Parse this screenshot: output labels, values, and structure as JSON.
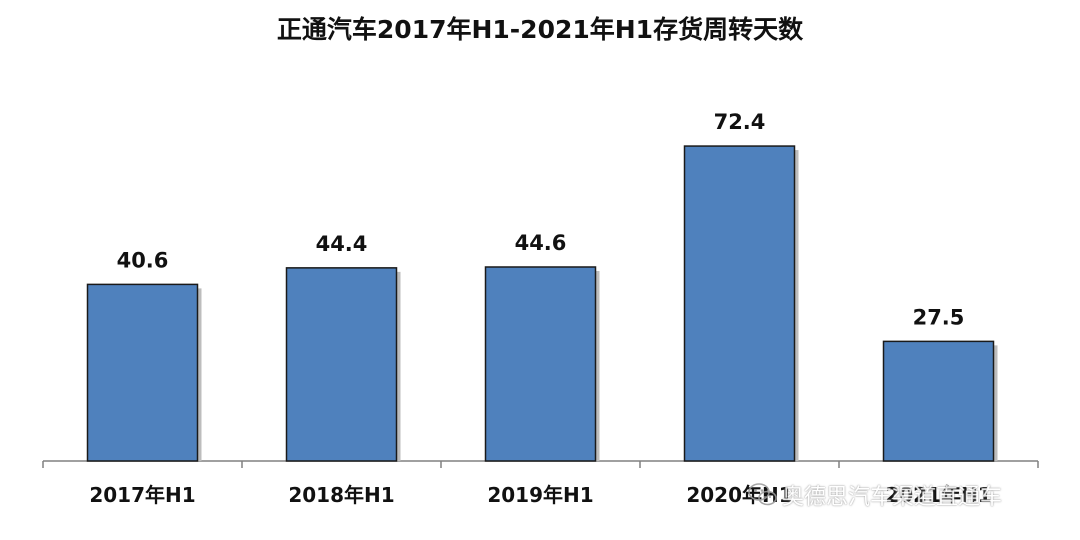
{
  "watermark": {
    "text": "奥德思汽车渠道直通车",
    "icon": "wechat-icon"
  },
  "colors": {
    "bar_fill": "#4F81BD",
    "bar_stroke": "#1A1A1A",
    "axis": "#808080"
  },
  "chart_data": {
    "type": "bar",
    "title": "正通汽车2017年H1-2021年H1存货周转天数",
    "categories": [
      "2017年H1",
      "2018年H1",
      "2019年H1",
      "2020年H1",
      "2021年H1"
    ],
    "values": [
      40.6,
      44.4,
      44.6,
      72.4,
      27.5
    ],
    "value_labels": [
      "40.6",
      "44.4",
      "44.6",
      "72.4",
      "27.5"
    ],
    "xlabel": "",
    "ylabel": "",
    "ylim": [
      0,
      80
    ],
    "grid": false,
    "legend": "none"
  }
}
